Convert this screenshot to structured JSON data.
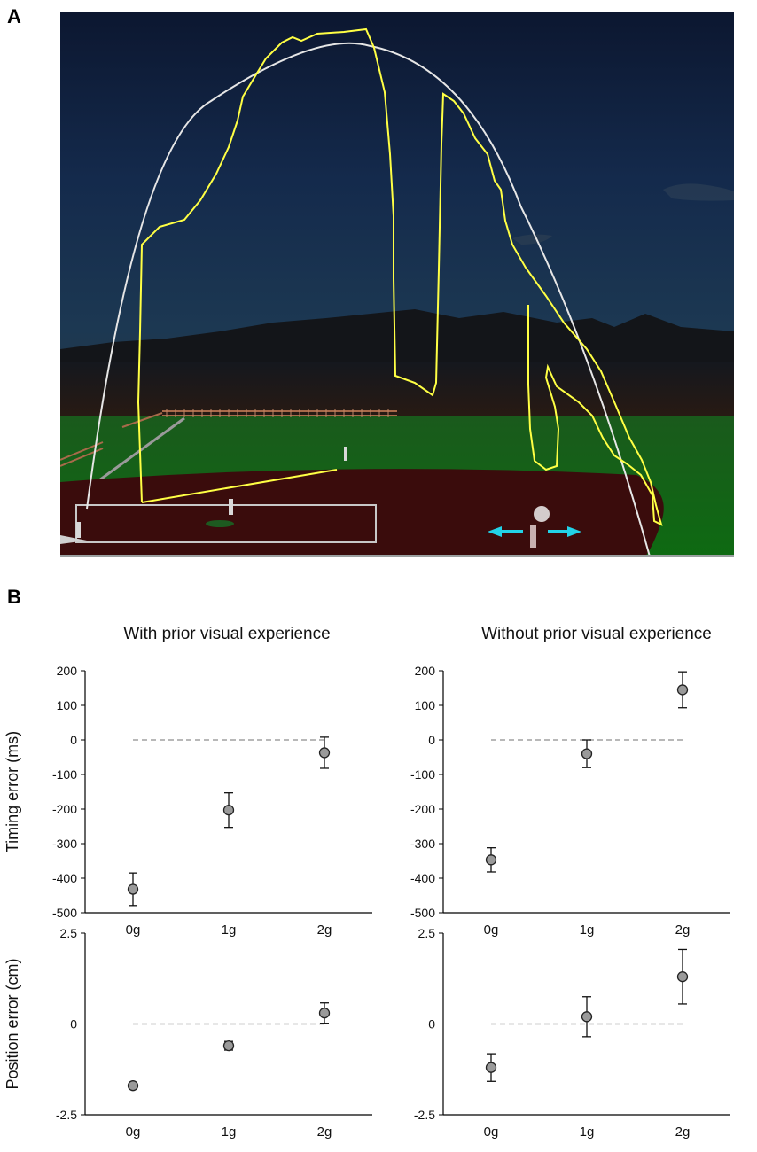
{
  "panel_a": {
    "letter": "A",
    "scene": "baseball-field-night"
  },
  "panel_b": {
    "letter": "B",
    "column_titles": [
      "With prior visual experience",
      "Without prior visual experience"
    ]
  },
  "colors": {
    "marker_fill": "#9a9a9a",
    "marker_stroke": "#222222",
    "reference_line": "#a0a0a0",
    "trajectory_actual": "#ffff44",
    "trajectory_ideal": "#e6e6e6",
    "arrow": "#22d3e8"
  },
  "chart_data": [
    {
      "type": "scatter",
      "title": "With prior visual experience",
      "ylabel": "Timing error (ms)",
      "xlabel": "",
      "categories": [
        "0g",
        "1g",
        "2g"
      ],
      "values": [
        -432,
        -203,
        -37
      ],
      "error": [
        47,
        50,
        45
      ],
      "ylim": [
        -500,
        200
      ],
      "yticks": [
        200,
        100,
        0,
        -100,
        -200,
        -300,
        -400,
        -500
      ],
      "ytick_labels": [
        "200",
        "100",
        "0",
        "-100",
        "-200",
        "-300",
        "-400",
        "-500"
      ],
      "reference_line": 0,
      "grid": false
    },
    {
      "type": "scatter",
      "title": "Without prior visual experience",
      "ylabel": "",
      "xlabel": "",
      "categories": [
        "0g",
        "1g",
        "2g"
      ],
      "values": [
        -347,
        -40,
        145
      ],
      "error": [
        35,
        40,
        52
      ],
      "ylim": [
        -500,
        200
      ],
      "yticks": [
        200,
        100,
        0,
        -100,
        -200,
        -300,
        -400,
        -500
      ],
      "ytick_labels": [
        "200",
        "100",
        "0",
        "-100",
        "-200",
        "-300",
        "-400",
        "-500"
      ],
      "reference_line": 0,
      "grid": false
    },
    {
      "type": "scatter",
      "title": "",
      "ylabel": "Position error (cm)",
      "xlabel": "",
      "categories": [
        "0g",
        "1g",
        "2g"
      ],
      "values": [
        -1.7,
        -0.6,
        0.3
      ],
      "error": [
        0.1,
        0.12,
        0.28
      ],
      "ylim": [
        -2.5,
        2.5
      ],
      "yticks": [
        2.5,
        0,
        -2.5
      ],
      "ytick_labels": [
        "2.5",
        "0",
        "-2.5"
      ],
      "reference_line": 0,
      "grid": false
    },
    {
      "type": "scatter",
      "title": "",
      "ylabel": "",
      "xlabel": "",
      "categories": [
        "0g",
        "1g",
        "2g"
      ],
      "values": [
        -1.2,
        0.2,
        1.3
      ],
      "error": [
        0.38,
        0.55,
        0.75
      ],
      "ylim": [
        -2.5,
        2.5
      ],
      "yticks": [
        2.5,
        0,
        -2.5
      ],
      "ytick_labels": [
        "2.5",
        "0",
        "-2.5"
      ],
      "reference_line": 0,
      "grid": false
    }
  ]
}
